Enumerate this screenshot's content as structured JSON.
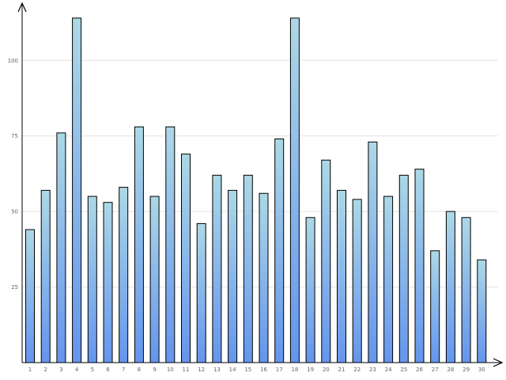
{
  "chart_data": {
    "type": "bar",
    "title": "",
    "xlabel": "",
    "ylabel": "",
    "categories": [
      "1",
      "2",
      "3",
      "4",
      "5",
      "6",
      "7",
      "8",
      "9",
      "10",
      "11",
      "12",
      "13",
      "14",
      "15",
      "16",
      "17",
      "18",
      "19",
      "20",
      "21",
      "22",
      "23",
      "24",
      "25",
      "26",
      "27",
      "28",
      "29",
      "30"
    ],
    "values": [
      44,
      57,
      76,
      114,
      55,
      53,
      58,
      78,
      55,
      78,
      69,
      46,
      62,
      57,
      62,
      56,
      74,
      114,
      48,
      67,
      57,
      54,
      73,
      55,
      62,
      64,
      37,
      50,
      48,
      34
    ],
    "ylim": [
      0,
      115
    ],
    "yticks": [
      25,
      50,
      75,
      100
    ],
    "ytick_labels": [
      "25",
      "50",
      "75",
      "100"
    ],
    "grid": true,
    "legend": "none",
    "colors": {
      "bar_top": "#add8e6",
      "bar_bottom": "#6495ed",
      "bar_stroke": "#000000",
      "grid": "#e3e3e3",
      "axis": "#000000",
      "tick_text": "#666666"
    }
  }
}
